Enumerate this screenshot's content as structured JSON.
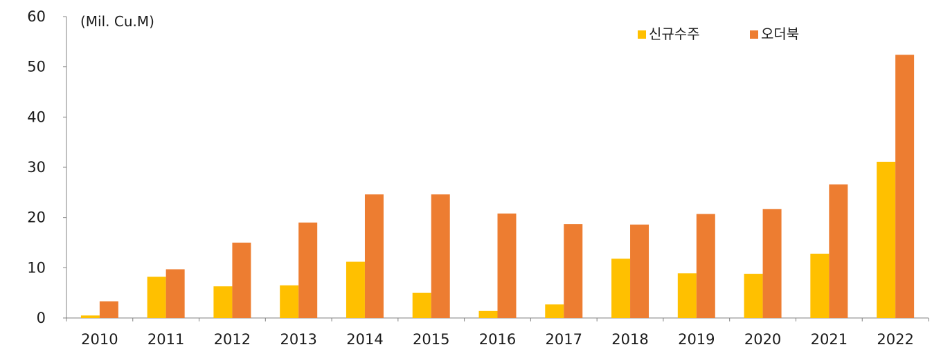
{
  "chart_data": {
    "type": "bar",
    "ylabel": "(Mil. Cu.M)",
    "ylim": [
      0,
      60
    ],
    "yticks": [
      0,
      10,
      20,
      30,
      40,
      50,
      60
    ],
    "categories": [
      "2010",
      "2011",
      "2012",
      "2013",
      "2014",
      "2015",
      "2016",
      "2017",
      "2018",
      "2019",
      "2020",
      "2021",
      "2022"
    ],
    "series": [
      {
        "name": "신규수주",
        "color": "#FFC000",
        "values": [
          0.5,
          8.2,
          6.3,
          6.5,
          11.2,
          5.0,
          1.4,
          2.7,
          11.8,
          8.9,
          8.8,
          12.8,
          31.1
        ]
      },
      {
        "name": "오더북",
        "color": "#ED7D31",
        "values": [
          3.3,
          9.7,
          15.0,
          19.0,
          24.6,
          24.6,
          20.8,
          18.7,
          18.6,
          20.7,
          21.7,
          26.6,
          52.4
        ]
      }
    ],
    "legend_position": "top-right",
    "grid": false
  }
}
